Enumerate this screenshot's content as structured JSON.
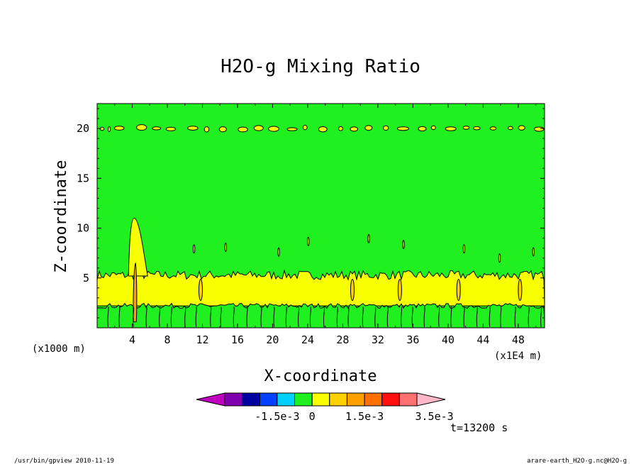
{
  "chart_data": {
    "type": "heatmap",
    "title": "H2O-g Mixing Ratio",
    "xlabel": "X-coordinate",
    "ylabel": "Z-coordinate",
    "x_unit_label": "(x1E4 m)",
    "y_unit_label": "(x1000 m)",
    "x_ticks": [
      "4",
      "8",
      "12",
      "16",
      "20",
      "24",
      "28",
      "32",
      "36",
      "40",
      "44",
      "48"
    ],
    "y_ticks": [
      "5",
      "10",
      "15",
      "20"
    ],
    "xlim": [
      0,
      51
    ],
    "ylim": [
      0,
      22.5
    ],
    "bands": {
      "top_yellow_z": [
        19.8,
        20.2
      ],
      "bottom_yellow_z": [
        2.2,
        5.2
      ],
      "lowest_green_z": [
        0,
        2.2
      ],
      "plume_x": 4.3,
      "plume_top_z": 11.0
    },
    "colorbar": {
      "colors": [
        "#c000c0",
        "#8000b0",
        "#0000a0",
        "#0040ff",
        "#00d0ff",
        "#20f020",
        "#f8ff00",
        "#ffd000",
        "#ffa000",
        "#ff7000",
        "#ff1010",
        "#ff7070",
        "#ffb8c8"
      ],
      "labels": [
        "-1.5e-3",
        "0",
        "1.5e-3",
        "3.5e-3"
      ]
    },
    "time_label": "t=13200 s",
    "footer_left": "/usr/bin/gpview  2010-11-19",
    "footer_right": "arare-earth_H2O-g.nc@H2O-g"
  }
}
